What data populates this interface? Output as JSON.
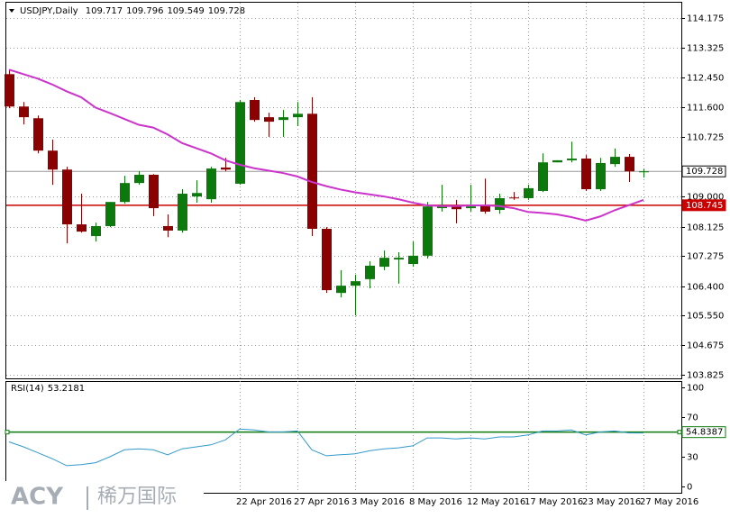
{
  "chart_data": [
    {
      "type": "candlestick",
      "title": "USDJPY,Daily",
      "categories": [
        null,
        null,
        null,
        null,
        null,
        null,
        null,
        null,
        null,
        null,
        null,
        null,
        null,
        null,
        null,
        null,
        "22 Apr 2016",
        null,
        null,
        null,
        "27 Apr 2016",
        null,
        null,
        null,
        "3 May 2016",
        null,
        null,
        null,
        "8 May 2016",
        null,
        null,
        null,
        "12 May 2016",
        null,
        null,
        null,
        "17 May 2016",
        null,
        null,
        null,
        "23 May 2016",
        null,
        null,
        null,
        "27 May 2016"
      ],
      "open": [
        112.55,
        111.61,
        111.27,
        110.33,
        109.78,
        108.19,
        107.85,
        108.14,
        108.84,
        109.39,
        109.63,
        108.14,
        108.01,
        109.0,
        108.92,
        109.84,
        109.37,
        111.8,
        111.3,
        111.22,
        111.3,
        111.4,
        108.06,
        106.2,
        106.41,
        106.6,
        106.96,
        107.17,
        107.04,
        107.28,
        108.66,
        108.71,
        108.66,
        108.74,
        108.61,
        108.97,
        108.95,
        109.16,
        109.99,
        110.05,
        110.1,
        109.21,
        109.94,
        110.15,
        109.717
      ],
      "high": [
        112.66,
        111.74,
        111.35,
        110.65,
        109.86,
        109.08,
        108.24,
        108.84,
        109.6,
        109.73,
        109.65,
        108.48,
        109.21,
        109.47,
        109.86,
        110.12,
        111.8,
        111.88,
        111.43,
        111.51,
        111.74,
        111.88,
        108.11,
        106.86,
        106.73,
        107.12,
        107.43,
        107.38,
        107.69,
        108.84,
        109.34,
        108.9,
        109.34,
        109.52,
        109.08,
        109.13,
        109.34,
        110.25,
        110.05,
        110.59,
        110.2,
        110.12,
        110.39,
        110.23,
        109.796
      ],
      "low": [
        111.56,
        111.09,
        110.25,
        109.34,
        107.64,
        107.95,
        107.69,
        108.11,
        108.79,
        109.34,
        108.43,
        107.82,
        107.95,
        108.82,
        108.82,
        109.73,
        109.34,
        111.17,
        110.73,
        110.73,
        111.04,
        107.85,
        106.2,
        106.07,
        105.55,
        106.33,
        106.86,
        106.47,
        106.96,
        107.2,
        108.56,
        108.22,
        108.56,
        108.5,
        108.5,
        108.9,
        108.9,
        109.13,
        109.99,
        109.99,
        109.16,
        109.16,
        109.86,
        109.42,
        109.549
      ],
      "close": [
        111.61,
        111.3,
        110.33,
        109.78,
        108.19,
        107.98,
        108.14,
        108.84,
        109.39,
        109.63,
        108.66,
        108.01,
        109.08,
        109.1,
        109.81,
        109.78,
        111.74,
        111.22,
        111.17,
        111.3,
        111.4,
        108.06,
        106.28,
        106.41,
        106.54,
        106.99,
        107.22,
        107.22,
        107.28,
        108.71,
        108.74,
        108.63,
        108.71,
        108.56,
        108.95,
        108.95,
        109.24,
        109.99,
        110.05,
        110.1,
        109.21,
        109.97,
        110.15,
        109.73,
        109.728
      ],
      "up_color": "#0b7a0b",
      "down_color": "#8b0000",
      "ma": {
        "color": "#cc33cc",
        "values": [
          112.68,
          112.55,
          112.42,
          112.25,
          112.05,
          111.88,
          111.58,
          111.42,
          111.25,
          111.08,
          111.0,
          110.8,
          110.55,
          110.4,
          110.25,
          110.05,
          109.92,
          109.82,
          109.75,
          109.68,
          109.58,
          109.42,
          109.3,
          109.2,
          109.12,
          109.06,
          109.0,
          108.92,
          108.82,
          108.74,
          108.72,
          108.72,
          108.74,
          108.74,
          108.72,
          108.66,
          108.55,
          108.52,
          108.48,
          108.4,
          108.3,
          108.42,
          108.6,
          108.75,
          108.9
        ]
      },
      "hline": {
        "value": 108.745,
        "color": "#cc0000"
      },
      "price_line_color": "#999999",
      "ylim": [
        103.72,
        114.65
      ],
      "yticks": [
        114.175,
        113.325,
        {
          "value": 112.45,
          "label": "112.450"
        },
        {
          "value": 111.6,
          "label": "111.600"
        },
        110.725,
        {
          "value": 109.0,
          "label": "109.000"
        },
        108.125,
        107.275,
        {
          "value": 106.4,
          "label": "106.400"
        },
        {
          "value": 105.55,
          "label": "105.550"
        },
        104.675,
        103.825
      ],
      "grid": true
    },
    {
      "type": "line",
      "title": "RSI(14)",
      "current": 53.2181,
      "color": "#3399cc",
      "values": [
        45,
        40,
        34,
        28,
        21,
        22,
        24,
        30,
        37,
        38,
        37,
        32,
        38,
        40,
        42,
        47,
        58,
        57,
        55,
        55,
        56,
        37,
        31,
        32,
        33,
        36,
        38,
        39,
        41,
        49,
        49,
        48,
        49,
        48,
        50,
        50,
        52,
        56,
        56,
        57,
        52,
        55,
        56,
        54,
        54
      ],
      "level": {
        "value": 54.8387,
        "color": "#0b7a0b"
      },
      "ylim": [
        0,
        100
      ],
      "yticks": [
        0,
        30,
        70,
        100
      ]
    }
  ],
  "watermark": {
    "brand": "ACY",
    "name": "稀万国际"
  }
}
